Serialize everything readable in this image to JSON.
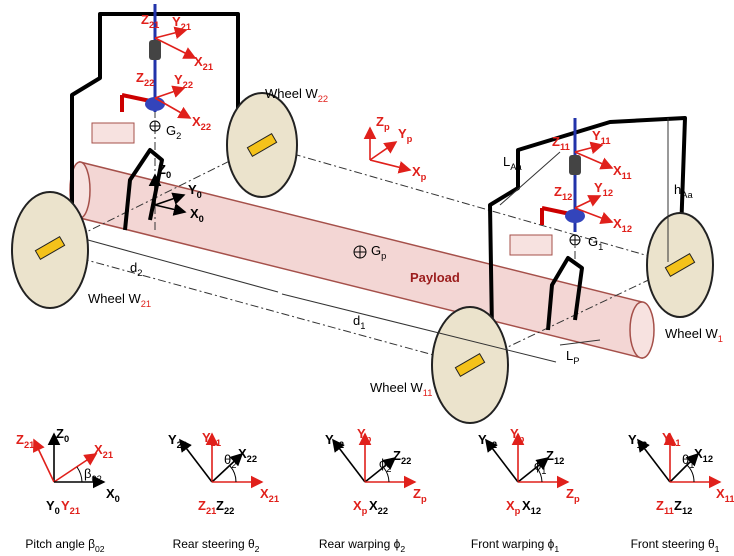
{
  "main_view": {
    "labels": [
      {
        "text": "Z",
        "sub": "21",
        "color": "#e0201b"
      },
      {
        "text": "Y",
        "sub": "21",
        "color": "#e0201b"
      },
      {
        "text": "X",
        "sub": "21",
        "color": "#e0201b"
      },
      {
        "text": "Z",
        "sub": "22",
        "color": "#e0201b"
      },
      {
        "text": "Y",
        "sub": "22",
        "color": "#e0201b"
      },
      {
        "text": "X",
        "sub": "22",
        "color": "#e0201b"
      },
      {
        "text": "G",
        "sub": "2",
        "color": "#000000"
      },
      {
        "text": "Wheel W",
        "sub": "22",
        "color": "#000000",
        "sub_color": "#e0201b"
      },
      {
        "text": "Z",
        "sub": "p",
        "color": "#e0201b"
      },
      {
        "text": "Y",
        "sub": "p",
        "color": "#e0201b"
      },
      {
        "text": "X",
        "sub": "p",
        "color": "#e0201b"
      },
      {
        "text": "Z",
        "sub": "0",
        "color": "#000000"
      },
      {
        "text": "Y",
        "sub": "0",
        "color": "#000000"
      },
      {
        "text": "X",
        "sub": "0",
        "color": "#000000"
      },
      {
        "text": "L",
        "sub": "Aa",
        "color": "#000000"
      },
      {
        "text": "h",
        "sub": "Aa",
        "color": "#000000"
      },
      {
        "text": "Z",
        "sub": "11",
        "color": "#e0201b"
      },
      {
        "text": "Y",
        "sub": "11",
        "color": "#e0201b"
      },
      {
        "text": "X",
        "sub": "11",
        "color": "#e0201b"
      },
      {
        "text": "Z",
        "sub": "12",
        "color": "#e0201b"
      },
      {
        "text": "Y",
        "sub": "12",
        "color": "#e0201b"
      },
      {
        "text": "X",
        "sub": "12",
        "color": "#e0201b"
      },
      {
        "text": "G",
        "sub": "1",
        "color": "#000000"
      },
      {
        "text": "G",
        "sub": "p",
        "color": "#000000"
      },
      {
        "text": "Payload",
        "color": "#9b1c1c"
      },
      {
        "text": "d",
        "sub": "2",
        "color": "#000000"
      },
      {
        "text": "d",
        "sub": "1",
        "color": "#000000"
      },
      {
        "text": "Wheel W",
        "sub": "21",
        "color": "#000000",
        "sub_color": "#e0201b"
      },
      {
        "text": "Wheel W",
        "sub": "1",
        "color": "#000000",
        "sub_color": "#e0201b"
      },
      {
        "text": "L",
        "sub": "P",
        "color": "#000000"
      },
      {
        "text": "Wheel W",
        "sub": "11",
        "color": "#000000",
        "sub_color": "#e0201b"
      }
    ]
  },
  "panels": [
    {
      "caption": {
        "text": "Pitch angle β",
        "sub": "02",
        "color": "#000000"
      },
      "labels": [
        {
          "text": "Z",
          "sub": "21",
          "color": "#e0201b"
        },
        {
          "text": "Z",
          "sub": "0",
          "color": "#000000"
        },
        {
          "text": "X",
          "sub": "21",
          "color": "#e0201b"
        },
        {
          "text": "X",
          "sub": "0",
          "color": "#000000"
        },
        {
          "text": "Y",
          "sub": "0",
          "color": "#000000"
        },
        {
          "text": "Y",
          "sub": "21",
          "color": "#e0201b"
        },
        {
          "text": "β",
          "sub": "02",
          "color": "#000000"
        }
      ]
    },
    {
      "caption": {
        "text": "Rear steering θ",
        "sub": "2",
        "color": "#000000"
      },
      "labels": [
        {
          "text": "Y",
          "sub": "22",
          "color": "#000000"
        },
        {
          "text": "Y",
          "sub": "21",
          "color": "#e0201b"
        },
        {
          "text": "X",
          "sub": "22",
          "color": "#000000"
        },
        {
          "text": "X",
          "sub": "21",
          "color": "#e0201b"
        },
        {
          "text": "Z",
          "sub": "21",
          "color": "#e0201b"
        },
        {
          "text": "Z",
          "sub": "22",
          "color": "#000000"
        },
        {
          "text": "θ",
          "sub": "2",
          "color": "#000000"
        }
      ]
    },
    {
      "caption": {
        "text": "Rear warping ϕ",
        "sub": "2",
        "color": "#000000"
      },
      "labels": [
        {
          "text": "Y",
          "sub": "22",
          "color": "#000000"
        },
        {
          "text": "Y",
          "sub": "p",
          "color": "#e0201b"
        },
        {
          "text": "Z",
          "sub": "22",
          "color": "#000000"
        },
        {
          "text": "Z",
          "sub": "p",
          "color": "#e0201b"
        },
        {
          "text": "X",
          "sub": "p",
          "color": "#e0201b"
        },
        {
          "text": "X",
          "sub": "22",
          "color": "#000000"
        },
        {
          "text": "ϕ",
          "sub": "2",
          "color": "#000000"
        }
      ]
    },
    {
      "caption": {
        "text": "Front warping ϕ",
        "sub": "1",
        "color": "#000000"
      },
      "labels": [
        {
          "text": "Y",
          "sub": "12",
          "color": "#000000"
        },
        {
          "text": "Y",
          "sub": "p",
          "color": "#e0201b"
        },
        {
          "text": "Z",
          "sub": "12",
          "color": "#000000"
        },
        {
          "text": "Z",
          "sub": "p",
          "color": "#e0201b"
        },
        {
          "text": "X",
          "sub": "p",
          "color": "#e0201b"
        },
        {
          "text": "X",
          "sub": "12",
          "color": "#000000"
        },
        {
          "text": "ϕ",
          "sub": "1",
          "color": "#000000"
        }
      ]
    },
    {
      "caption": {
        "text": "Front steering θ",
        "sub": "1",
        "color": "#000000"
      },
      "labels": [
        {
          "text": "Y",
          "sub": "12",
          "color": "#000000"
        },
        {
          "text": "Y",
          "sub": "11",
          "color": "#e0201b"
        },
        {
          "text": "X",
          "sub": "12",
          "color": "#000000"
        },
        {
          "text": "X",
          "sub": "11",
          "color": "#e0201b"
        },
        {
          "text": "Z",
          "sub": "11",
          "color": "#e0201b"
        },
        {
          "text": "Z",
          "sub": "12",
          "color": "#000000"
        },
        {
          "text": "θ",
          "sub": "1",
          "color": "#000000"
        }
      ]
    }
  ]
}
